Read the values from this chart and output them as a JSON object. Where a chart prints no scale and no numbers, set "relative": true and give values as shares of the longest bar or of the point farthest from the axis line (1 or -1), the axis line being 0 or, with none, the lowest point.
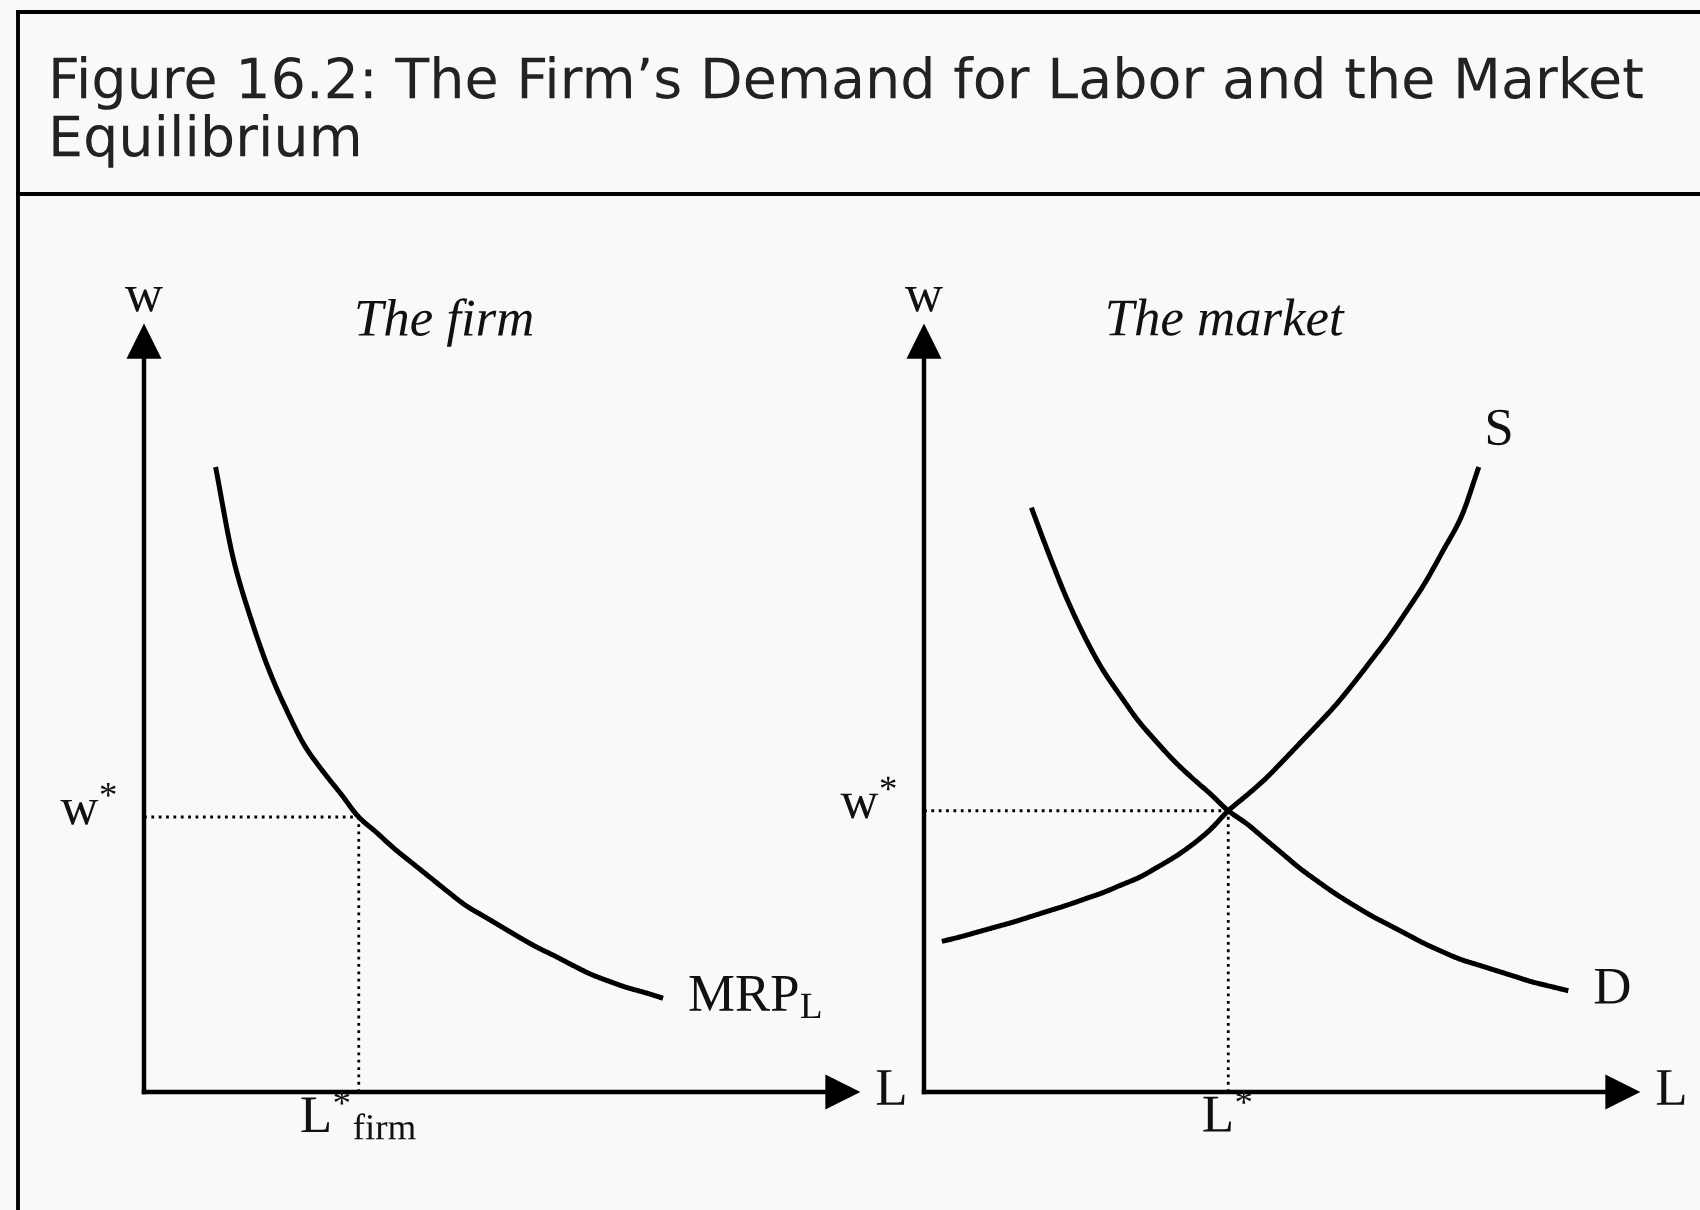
{
  "chart_data": [
    {
      "type": "line",
      "title": "Figure 16.2: The Firm’s Demand for Labor and the Market Equilibrium",
      "subtitle": "The firm",
      "xlabel": "L",
      "ylabel": "w",
      "relative": true,
      "legend": false,
      "grid": false,
      "marker": "none",
      "line_style": "solid",
      "categories": [
        null,
        null,
        null,
        null,
        null,
        null,
        null,
        null,
        null,
        null,
        null,
        null,
        null,
        null,
        null,
        null,
        null,
        null,
        null,
        null,
        null,
        null,
        null,
        null,
        null,
        null,
        null,
        null,
        null,
        null,
        null,
        null,
        null,
        null,
        null,
        null,
        null,
        null,
        null,
        null
      ],
      "series": [
        {
          "name": "MRP$_{L}$",
          "color": "#000000",
          "values": [
            null,
            null,
            null,
            null,
            1.0,
            0.852,
            0.755,
            0.674,
            0.609,
            0.553,
            0.513,
            0.477,
            0.44,
            0.415,
            0.389,
            0.366,
            0.343,
            0.32,
            0.298,
            0.281,
            0.264,
            0.247,
            0.231,
            0.217,
            0.202,
            0.188,
            0.177,
            0.167,
            0.159,
            0.15,
            null,
            null,
            null,
            null,
            null,
            null,
            null,
            null,
            null,
            null
          ]
        }
      ],
      "ref_lines": [
        {
          "axis": "y",
          "value": 0.44,
          "label": "w$^{*}$",
          "line_style": "dotted",
          "color": "#000000"
        }
      ],
      "annotations": [
        "L$^{*}$$_{firm}$"
      ]
    },
    {
      "type": "line",
      "subtitle": "The market",
      "xlabel": "L",
      "ylabel": "w",
      "relative": true,
      "legend": false,
      "grid": false,
      "marker": "none",
      "line_style": "solid",
      "categories": [
        null,
        null,
        null,
        null,
        null,
        null,
        null,
        null,
        null,
        null,
        null,
        null,
        null,
        null,
        null,
        null,
        null,
        null,
        null,
        null,
        null,
        null,
        null,
        null,
        null,
        null,
        null,
        null,
        null,
        null,
        null,
        null,
        null,
        null,
        null,
        null,
        null,
        null,
        null,
        null
      ],
      "series": [
        {
          "name": "S",
          "color": "#000000",
          "values": [
            null,
            0.241,
            0.248,
            0.256,
            0.264,
            0.272,
            0.281,
            0.29,
            0.299,
            0.309,
            0.319,
            0.331,
            0.343,
            0.359,
            0.376,
            0.396,
            0.42,
            0.45,
            0.474,
            0.499,
            0.528,
            0.558,
            0.588,
            0.619,
            0.654,
            0.691,
            0.729,
            0.771,
            0.815,
            0.866,
            0.919,
            1.0,
            null,
            null,
            null,
            null,
            null,
            null,
            null,
            null
          ]
        },
        {
          "name": "D",
          "color": "#000000",
          "values": [
            null,
            null,
            null,
            null,
            null,
            null,
            0.935,
            0.859,
            0.788,
            0.727,
            0.675,
            0.633,
            0.593,
            0.56,
            0.529,
            0.502,
            0.477,
            0.45,
            0.43,
            0.406,
            0.382,
            0.358,
            0.337,
            0.317,
            0.299,
            0.282,
            0.267,
            0.252,
            0.237,
            0.224,
            0.212,
            0.203,
            0.194,
            0.185,
            0.176,
            0.169,
            0.162,
            null,
            null,
            null
          ]
        }
      ],
      "ref_lines": [
        {
          "axis": "y",
          "value": 0.45,
          "label": "w$^{*}$",
          "line_style": "dotted",
          "color": "#000000"
        }
      ],
      "annotations": [
        "L$^{*}$"
      ]
    }
  ]
}
